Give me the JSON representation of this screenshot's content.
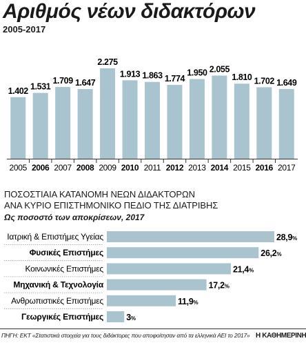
{
  "chart_data": [
    {
      "type": "bar",
      "title": "Αριθμός νέων διδακτόρων",
      "subtitle": "2005-2017",
      "categories": [
        "2005",
        "2006",
        "2007",
        "2008",
        "2009",
        "2010",
        "2011",
        "2012",
        "2013",
        "2014",
        "2015",
        "2016",
        "2017"
      ],
      "bold_categories": [
        "2006",
        "2008",
        "2010",
        "2012",
        "2014",
        "2016"
      ],
      "values": [
        1402,
        1531,
        1709,
        1647,
        2275,
        1913,
        1863,
        1774,
        1950,
        2055,
        1810,
        1702,
        1649
      ],
      "value_labels": [
        "1.402",
        "1.531",
        "1.709",
        "1.647",
        "2.275",
        "1.913",
        "1.863",
        "1.774",
        "1.950",
        "2.055",
        "1.810",
        "1.702",
        "1.649"
      ],
      "bar_color": "#a9c4cf",
      "grid": false
    },
    {
      "type": "bar",
      "orientation": "horizontal",
      "title_lines": [
        "ΠΟΣΟΣΤΙΑΙΑ ΚΑΤΑΝΟΜΗ ΝΕΩΝ ΔΙΔΑΚΤΟΡΩΝ",
        "ΑΝΑ ΚΥΡΙΟ ΕΠΙΣΤΗΜΟΝΙΚΟ ΠΕΔΙΟ ΤΗΣ ΔΙΑΤΡΙΒΗΣ"
      ],
      "subtitle": "Ως ποσοστό των αποκρίσεων, 2017",
      "categories": [
        "Ιατρική & Επιστήμες Υγείας",
        "Φυσικές Επιστήμες",
        "Κοινωνικές Επιστήμες",
        "Μηχανική & Τεχνολογία",
        "Ανθρωπιστικές Επιστήμες",
        "Γεωργικές Επιστήμες"
      ],
      "bold_categories": [
        "Φυσικές Επιστήμες",
        "Μηχανική & Τεχνολογία",
        "Γεωργικές Επιστήμες"
      ],
      "values": [
        28.9,
        26.2,
        21.4,
        17.2,
        11.9,
        3
      ],
      "value_labels": [
        "28,9",
        "26,2",
        "21,4",
        "17,2",
        "11,9",
        "3"
      ],
      "unit": "%",
      "bar_color": "#a9c4cf",
      "grid": false
    }
  ],
  "source": "ΠΗΓΗ: ΕΚΤ «Στατιστικά στοιχεία για τους διδάκτορες που αποφοίτησαν από τα ελληνικά ΑΕΙ το 2017»",
  "brand": "Η ΚΑΘΗΜΕΡΙΝΗ"
}
